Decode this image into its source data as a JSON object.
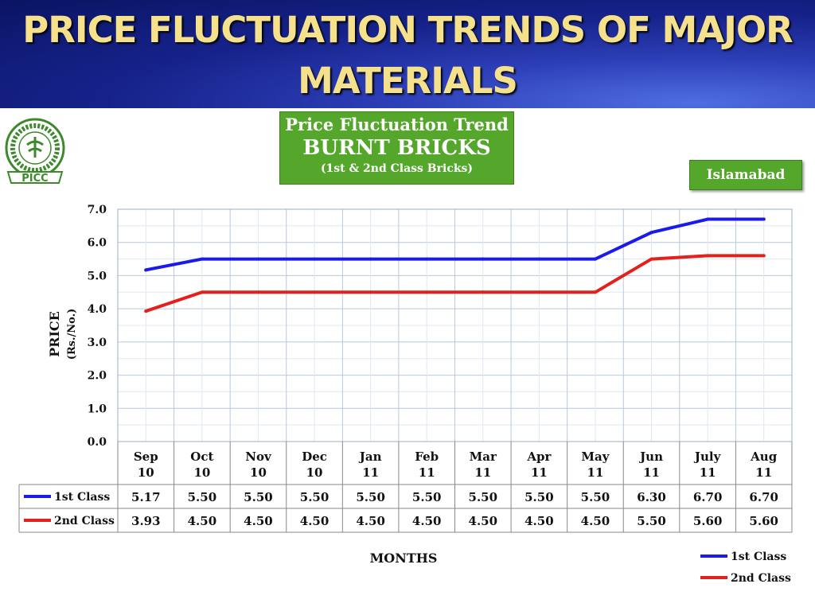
{
  "slide": {
    "title": "PRICE FLUCTUATION TRENDS OF MAJOR MATERIALS",
    "logo_text": "PICC"
  },
  "banner": {
    "line1": "Price Fluctuation Trend",
    "line2": "BURNT BRICKS",
    "line3": "(1st & 2nd Class Bricks)",
    "color": "#55a72c"
  },
  "location": "Islamabad",
  "chart_data": {
    "type": "line",
    "title": "BURNT BRICKS",
    "ylabel": "PRICE",
    "ylabel_unit": "(Rs./No.)",
    "xlabel": "MONTHS",
    "ylim": [
      0,
      7
    ],
    "yticks": [
      "0.0",
      "1.0",
      "2.0",
      "3.0",
      "4.0",
      "5.0",
      "6.0",
      "7.0"
    ],
    "grid": true,
    "legend_position": "bottom-right",
    "categories": [
      [
        "Sep",
        "10"
      ],
      [
        "Oct",
        "10"
      ],
      [
        "Nov",
        "10"
      ],
      [
        "Dec",
        "10"
      ],
      [
        "Jan",
        "11"
      ],
      [
        "Feb",
        "11"
      ],
      [
        "Mar",
        "11"
      ],
      [
        "Apr",
        "11"
      ],
      [
        "May",
        "11"
      ],
      [
        "Jun",
        "11"
      ],
      [
        "July",
        "11"
      ],
      [
        "Aug",
        "11"
      ]
    ],
    "series": [
      {
        "name": "1st Class",
        "color": "#1a1aeb",
        "values": [
          5.17,
          5.5,
          5.5,
          5.5,
          5.5,
          5.5,
          5.5,
          5.5,
          5.5,
          6.3,
          6.7,
          6.7
        ],
        "labels": [
          "5.17",
          "5.50",
          "5.50",
          "5.50",
          "5.50",
          "5.50",
          "5.50",
          "5.50",
          "5.50",
          "6.30",
          "6.70",
          "6.70"
        ]
      },
      {
        "name": "2nd Class",
        "color": "#e3201b",
        "values": [
          3.93,
          4.5,
          4.5,
          4.5,
          4.5,
          4.5,
          4.5,
          4.5,
          4.5,
          5.5,
          5.6,
          5.6
        ],
        "labels": [
          "3.93",
          "4.50",
          "4.50",
          "4.50",
          "4.50",
          "4.50",
          "4.50",
          "4.50",
          "4.50",
          "5.50",
          "5.60",
          "5.60"
        ]
      }
    ]
  }
}
